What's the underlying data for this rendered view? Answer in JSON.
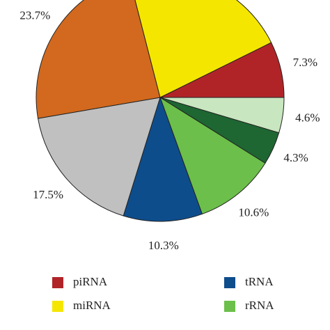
{
  "chart_data": {
    "type": "pie",
    "categories": [
      "piRNA",
      null,
      null,
      "rRNA",
      "tRNA",
      null,
      null,
      "miRNA"
    ],
    "values": [
      7.3,
      4.6,
      4.3,
      10.6,
      10.3,
      17.5,
      23.7,
      21.7
    ],
    "value_labels": [
      "7.3%",
      "4.6%",
      "4.3%",
      "10.6%",
      "10.3%",
      "17.5%",
      "23.7%",
      null
    ],
    "colors": [
      "#b02428",
      "#c8e6bf",
      "#1e6632",
      "#6cbf4a",
      "#0e4d8c",
      "#c0c0c0",
      "#d2691e",
      "#f5e600"
    ]
  }
}
